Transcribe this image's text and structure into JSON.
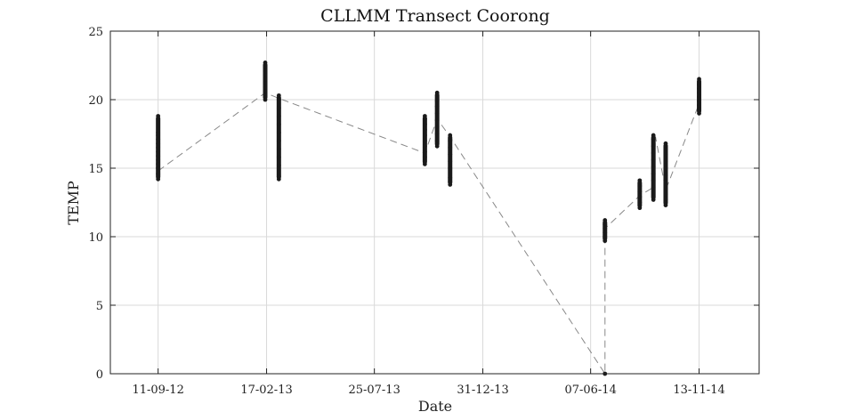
{
  "chart_data": {
    "type": "scatter",
    "title": "CLLMM Transect Coorong",
    "xlabel": "Date",
    "ylabel": "TEMP",
    "ylim": [
      0,
      25
    ],
    "xlim": [
      "2012-07-03",
      "2015-02-09"
    ],
    "grid": true,
    "y_ticks": [
      0,
      5,
      10,
      15,
      20,
      25
    ],
    "x_ticks": [
      {
        "date": "2012-09-11",
        "label": "11-09-12"
      },
      {
        "date": "2013-02-17",
        "label": "17-02-13"
      },
      {
        "date": "2013-07-25",
        "label": "25-07-13"
      },
      {
        "date": "2013-12-31",
        "label": "31-12-13"
      },
      {
        "date": "2014-06-07",
        "label": "07-06-14"
      },
      {
        "date": "2014-11-13",
        "label": "13-11-14"
      }
    ],
    "series": [
      {
        "points": [
          {
            "date": "2012-09-11",
            "values": [
              14.2,
              14.6,
              15.0,
              15.3,
              15.6,
              15.9,
              16.2,
              16.5,
              16.8,
              17.1,
              17.4,
              17.6,
              18.8
            ]
          },
          {
            "date": "2013-02-15",
            "values": [
              20.0,
              20.3,
              20.6,
              20.9,
              21.2,
              21.5,
              21.8,
              22.1,
              22.4,
              22.7
            ]
          },
          {
            "date": "2013-03-07",
            "values": [
              14.2,
              14.4,
              15.2,
              15.8,
              16.4,
              17.0,
              17.6,
              18.2,
              18.8,
              19.4,
              20.0,
              20.3
            ]
          },
          {
            "date": "2013-10-07",
            "values": [
              15.3,
              15.8,
              16.2,
              16.6,
              17.0,
              17.4,
              17.8,
              18.2,
              18.6,
              18.8
            ]
          },
          {
            "date": "2013-10-25",
            "values": [
              16.6,
              17.0,
              17.5,
              18.0,
              18.5,
              19.0,
              19.5,
              19.9,
              20.5
            ]
          },
          {
            "date": "2013-11-13",
            "values": [
              13.8,
              14.0,
              14.3,
              15.0,
              15.5,
              16.0,
              16.5,
              17.0,
              17.4
            ]
          },
          {
            "date": "2014-06-28",
            "values": [
              0.0,
              9.7,
              10.0,
              10.3,
              10.6,
              10.9,
              11.2
            ]
          },
          {
            "date": "2014-08-18",
            "values": [
              12.1,
              12.5,
              12.9,
              13.3,
              13.7,
              14.1
            ]
          },
          {
            "date": "2014-09-07",
            "values": [
              12.7,
              13.6,
              14.1,
              14.6,
              15.1,
              15.6,
              16.1,
              16.6,
              17.1,
              17.4
            ]
          },
          {
            "date": "2014-09-25",
            "values": [
              12.3,
              12.7,
              13.1,
              13.5,
              14.0,
              14.5,
              15.0,
              15.5,
              16.0,
              16.4,
              16.8
            ]
          },
          {
            "date": "2014-11-13",
            "values": [
              19.0,
              19.3,
              19.6,
              19.9,
              20.2,
              20.5,
              20.8,
              21.1,
              21.5
            ]
          }
        ]
      },
      {
        "style": "dashed",
        "points": [
          {
            "date": "2012-09-11",
            "value": 14.8
          },
          {
            "date": "2013-02-15",
            "value": 20.5
          },
          {
            "date": "2013-03-07",
            "value": 20.1
          },
          {
            "date": "2013-10-07",
            "value": 16.1
          },
          {
            "date": "2013-10-25",
            "value": 18.6
          },
          {
            "date": "2013-11-13",
            "value": 17.3
          },
          {
            "date": "2014-06-28",
            "value": 0.0
          },
          {
            "date": "2014-06-28",
            "value": 10.6
          },
          {
            "date": "2014-08-18",
            "value": 13.0
          },
          {
            "date": "2014-09-07",
            "value": 13.6
          },
          {
            "date": "2014-09-10",
            "value": 17.3
          },
          {
            "date": "2014-09-25",
            "value": 13.4
          },
          {
            "date": "2014-11-13",
            "value": 19.7
          }
        ]
      }
    ]
  }
}
